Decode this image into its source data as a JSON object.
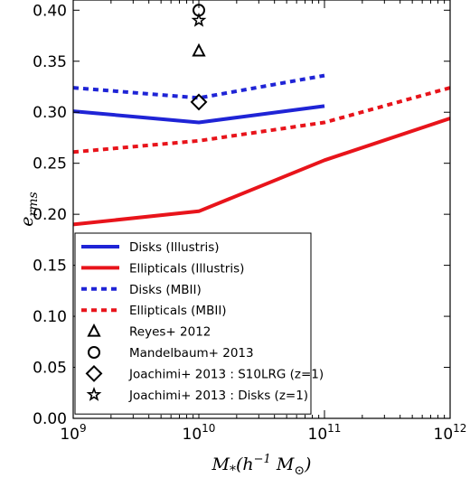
{
  "chart_data": {
    "type": "line",
    "title": "",
    "xlabel": "M_*(h^{-1} M_⊙)",
    "ylabel": "e_rms",
    "xscale": "log",
    "xlim": [
      1000000000.0,
      1000000000000.0
    ],
    "ylim": [
      0.0,
      0.41
    ],
    "xticks": [
      {
        "value": 1000000000.0,
        "base": "10",
        "exp": "9"
      },
      {
        "value": 10000000000.0,
        "base": "10",
        "exp": "10"
      },
      {
        "value": 100000000000.0,
        "base": "10",
        "exp": "11"
      },
      {
        "value": 1000000000000.0,
        "base": "10",
        "exp": "12"
      }
    ],
    "yticks": [
      {
        "value": 0.0,
        "label": "0.00"
      },
      {
        "value": 0.05,
        "label": "0.05"
      },
      {
        "value": 0.1,
        "label": "0.10"
      },
      {
        "value": 0.15,
        "label": "0.15"
      },
      {
        "value": 0.2,
        "label": "0.20"
      },
      {
        "value": 0.25,
        "label": "0.25"
      },
      {
        "value": 0.3,
        "label": "0.30"
      },
      {
        "value": 0.35,
        "label": "0.35"
      },
      {
        "value": 0.4,
        "label": "0.40"
      }
    ],
    "grid": false,
    "legend_position": "bottom-left",
    "series": [
      {
        "name": "Disks (Illustris)",
        "kind": "line",
        "color": "#1f24d6",
        "dash": "solid",
        "x": [
          1000000000.0,
          10000000000.0,
          100000000000.0
        ],
        "y": [
          0.301,
          0.29,
          0.306
        ]
      },
      {
        "name": "Ellipticals (Illustris)",
        "kind": "line",
        "color": "#e8141b",
        "dash": "solid",
        "x": [
          1000000000.0,
          10000000000.0,
          100000000000.0,
          1000000000000.0
        ],
        "y": [
          0.19,
          0.203,
          0.253,
          0.294
        ]
      },
      {
        "name": "Disks (MBII)",
        "kind": "line",
        "color": "#1f24d6",
        "dash": "dotted",
        "x": [
          1000000000.0,
          10000000000.0,
          100000000000.0
        ],
        "y": [
          0.324,
          0.314,
          0.336
        ]
      },
      {
        "name": "Ellipticals (MBII)",
        "kind": "line",
        "color": "#e8141b",
        "dash": "dotted",
        "x": [
          1000000000.0,
          10000000000.0,
          100000000000.0,
          1000000000000.0
        ],
        "y": [
          0.261,
          0.272,
          0.29,
          0.324
        ]
      },
      {
        "name": "Reyes+ 2012",
        "kind": "marker",
        "marker": "triangle",
        "x": [
          10000000000.0
        ],
        "y": [
          0.36
        ]
      },
      {
        "name": "Mandelbaum+ 2013",
        "kind": "marker",
        "marker": "circle",
        "x": [
          10000000000.0
        ],
        "y": [
          0.4
        ]
      },
      {
        "name": "Joachimi+ 2013 : S10LRG (z=1)",
        "kind": "marker",
        "marker": "diamond",
        "x": [
          10000000000.0
        ],
        "y": [
          0.31
        ]
      },
      {
        "name": "Joachimi+ 2013 : Disks (z=1)",
        "kind": "marker",
        "marker": "star",
        "x": [
          10000000000.0
        ],
        "y": [
          0.39
        ]
      }
    ]
  }
}
